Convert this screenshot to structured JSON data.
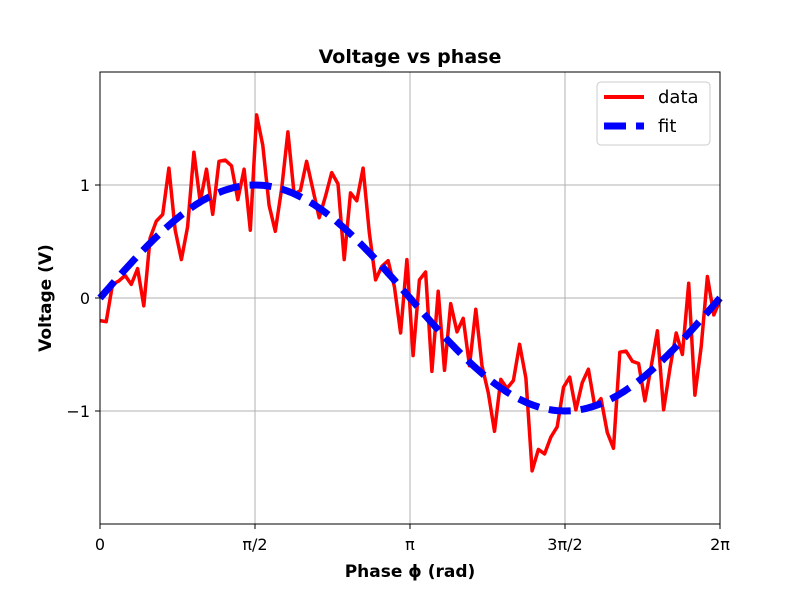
{
  "chart_data": {
    "type": "line",
    "title": "Voltage vs phase",
    "xlabel": "Phase ϕ (rad)",
    "ylabel": "Voltage (V)",
    "xlim": [
      0,
      6.2832
    ],
    "ylim": [
      -2,
      2
    ],
    "grid": true,
    "legend_position": "top-right",
    "xticks": [
      {
        "value": 0,
        "label": "0"
      },
      {
        "value": 1.5708,
        "label": "π/2"
      },
      {
        "value": 3.1416,
        "label": "π"
      },
      {
        "value": 4.7124,
        "label": "3π/2"
      },
      {
        "value": 6.2832,
        "label": "2π"
      }
    ],
    "yticks": [
      {
        "value": -1,
        "label": "−1"
      },
      {
        "value": 0,
        "label": "0"
      },
      {
        "value": 1,
        "label": "1"
      }
    ],
    "series": [
      {
        "name": "data",
        "color": "#ff0000",
        "style": "solid",
        "x": [
          0.0,
          0.063,
          0.127,
          0.19,
          0.254,
          0.317,
          0.381,
          0.444,
          0.508,
          0.571,
          0.635,
          0.698,
          0.762,
          0.825,
          0.888,
          0.952,
          1.015,
          1.079,
          1.142,
          1.206,
          1.269,
          1.333,
          1.396,
          1.46,
          1.523,
          1.587,
          1.65,
          1.714,
          1.777,
          1.841,
          1.904,
          1.967,
          2.031,
          2.094,
          2.158,
          2.221,
          2.285,
          2.348,
          2.412,
          2.475,
          2.539,
          2.602,
          2.666,
          2.729,
          2.793,
          2.856,
          2.92,
          2.983,
          3.046,
          3.11,
          3.173,
          3.237,
          3.3,
          3.364,
          3.427,
          3.491,
          3.554,
          3.618,
          3.681,
          3.745,
          3.808,
          3.871,
          3.935,
          3.998,
          4.062,
          4.125,
          4.189,
          4.252,
          4.316,
          4.379,
          4.443,
          4.506,
          4.57,
          4.633,
          4.697,
          4.76,
          4.823,
          4.887,
          4.95,
          5.014,
          5.077,
          5.141,
          5.204,
          5.268,
          5.331,
          5.395,
          5.458,
          5.522,
          5.585,
          5.649,
          5.712,
          5.776,
          5.839,
          5.902,
          5.966,
          6.029,
          6.093,
          6.156,
          6.22,
          6.283
        ],
        "y": [
          -0.2,
          -0.21,
          0.12,
          0.15,
          0.2,
          0.12,
          0.26,
          -0.07,
          0.53,
          0.68,
          0.74,
          1.15,
          0.6,
          0.34,
          0.63,
          1.29,
          0.85,
          1.14,
          0.74,
          1.21,
          1.22,
          1.17,
          0.87,
          1.14,
          0.6,
          1.62,
          1.35,
          0.82,
          0.59,
          0.97,
          1.47,
          0.92,
          0.95,
          1.21,
          0.96,
          0.71,
          0.9,
          1.11,
          1.01,
          0.34,
          0.93,
          0.86,
          1.15,
          0.58,
          0.16,
          0.28,
          0.33,
          0.1,
          -0.31,
          0.34,
          -0.51,
          0.16,
          0.23,
          -0.65,
          0.06,
          -0.64,
          -0.05,
          -0.3,
          -0.18,
          -0.6,
          -0.1,
          -0.6,
          -0.84,
          -1.18,
          -0.72,
          -0.8,
          -0.73,
          -0.41,
          -0.71,
          -1.53,
          -1.34,
          -1.38,
          -1.23,
          -1.14,
          -0.79,
          -0.7,
          -0.99,
          -0.75,
          -0.63,
          -0.96,
          -0.89,
          -1.19,
          -1.33,
          -0.48,
          -0.47,
          -0.56,
          -0.58,
          -0.91,
          -0.61,
          -0.29,
          -0.99,
          -0.62,
          -0.31,
          -0.5,
          0.13,
          -0.86,
          -0.43,
          0.19,
          -0.15,
          -0.02
        ]
      },
      {
        "name": "fit",
        "color": "#0000ff",
        "style": "dashed",
        "function": "sin"
      }
    ]
  }
}
